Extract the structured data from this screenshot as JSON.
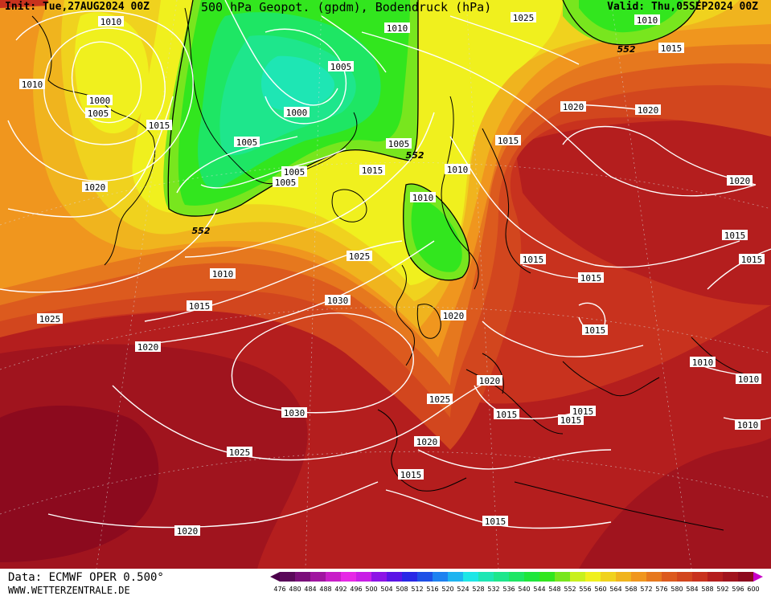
{
  "header": {
    "init": "Init: Tue,27AUG2024 00Z",
    "title": "500 hPa Geopot. (gpdm), Bodendruck (hPa)",
    "valid": "Valid: Thu,05SEP2024 00Z"
  },
  "footer": {
    "data_source": "Data: ECMWF OPER 0.500°",
    "website": "WWW.WETTERZENTRALE.DE"
  },
  "colorbar": {
    "ticks": [
      "476",
      "480",
      "484",
      "488",
      "492",
      "496",
      "500",
      "504",
      "508",
      "512",
      "516",
      "520",
      "524",
      "528",
      "532",
      "536",
      "540",
      "544",
      "548",
      "552",
      "556",
      "560",
      "564",
      "568",
      "572",
      "576",
      "580",
      "584",
      "588",
      "592",
      "596",
      "600"
    ],
    "colors": [
      "#5a0a5a",
      "#7a0f7a",
      "#a015a0",
      "#c81ec8",
      "#e628e6",
      "#c81ee6",
      "#8c14e6",
      "#5a14e6",
      "#2828e6",
      "#1e50e6",
      "#1e82f0",
      "#1eb4f0",
      "#1ee6e6",
      "#1ee6b4",
      "#1ee68c",
      "#1ee664",
      "#1ee63c",
      "#32e61e",
      "#78e61e",
      "#c8f01e",
      "#f0f01e",
      "#f0d21e",
      "#f0b41e",
      "#f0961e",
      "#e6781e",
      "#dc5a1e",
      "#d2461e",
      "#c8321e",
      "#b41e1e",
      "#a0141e",
      "#8c0a1e"
    ],
    "arrow_left": "#4b004b",
    "arrow_right": "#c800c8"
  },
  "isobar_labels": [
    {
      "text": "1010"
    },
    {
      "text": "1010"
    },
    {
      "text": "1025"
    },
    {
      "text": "1010"
    },
    {
      "text": "1015"
    },
    {
      "text": "1010"
    },
    {
      "text": "1000"
    },
    {
      "text": "1005"
    },
    {
      "text": "1005"
    },
    {
      "text": "1015"
    },
    {
      "text": "1000"
    },
    {
      "text": "1020"
    },
    {
      "text": "1020"
    },
    {
      "text": "1005"
    },
    {
      "text": "1005"
    },
    {
      "text": "1005"
    },
    {
      "text": "1015"
    },
    {
      "text": "1015"
    },
    {
      "text": "1010"
    },
    {
      "text": "1020"
    },
    {
      "text": "1010"
    },
    {
      "text": "1020"
    },
    {
      "text": "1025"
    },
    {
      "text": "1010"
    },
    {
      "text": "1015"
    },
    {
      "text": "1015"
    },
    {
      "text": "1015"
    },
    {
      "text": "1030"
    },
    {
      "text": "1025"
    },
    {
      "text": "1020"
    },
    {
      "text": "1020"
    },
    {
      "text": "1015"
    },
    {
      "text": "1010"
    },
    {
      "text": "1015"
    },
    {
      "text": "1010"
    },
    {
      "text": "1025"
    },
    {
      "text": "1020"
    },
    {
      "text": "1030"
    },
    {
      "text": "1015"
    },
    {
      "text": "1015"
    },
    {
      "text": "1015"
    },
    {
      "text": "1010"
    },
    {
      "text": "1020"
    },
    {
      "text": "1025"
    },
    {
      "text": "1015"
    },
    {
      "text": "1015"
    },
    {
      "text": "1020"
    },
    {
      "text": "1005"
    },
    {
      "text": "1015"
    }
  ],
  "contour_labels": [
    {
      "text": "552"
    },
    {
      "text": "552"
    },
    {
      "text": "552"
    }
  ],
  "colors": {
    "isobar": "#ffffff",
    "coast": "#000000",
    "label_bg": "#ffffff"
  }
}
